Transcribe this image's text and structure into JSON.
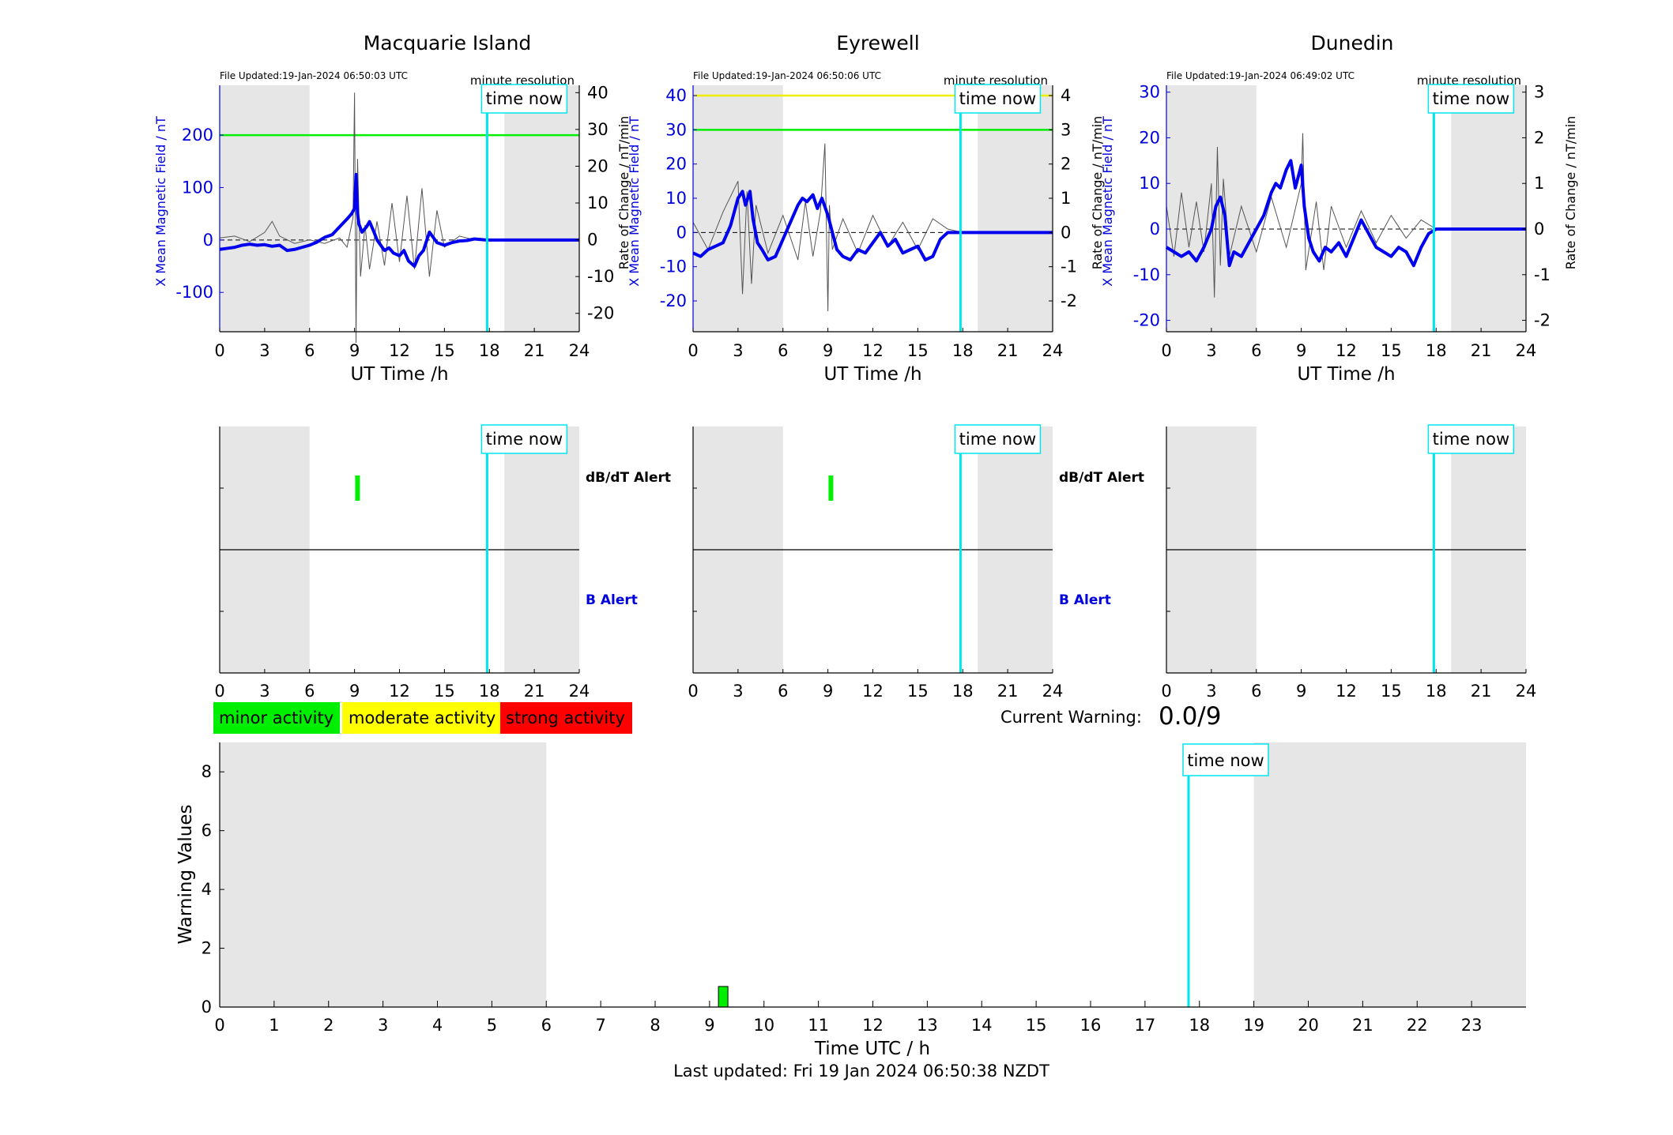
{
  "colors": {
    "shade": "#e6e6e6",
    "main_series": "#0000ee",
    "rate_series": "#555555",
    "time_now": "#00e5ee",
    "green_threshold": "#00ee00",
    "yellow_threshold": "#eeee00",
    "axis_blue": "#0000dd",
    "minor": "#00ee00",
    "moderate": "#ffff00",
    "strong": "#ff0000"
  },
  "labels": {
    "ut_time": "UT Time /h",
    "left_axis": "X Mean Magnetic Field / nT",
    "right_axis": "Rate of Change / nT/min",
    "minute_resolution": "minute resolution",
    "time_now": "time now",
    "dbdt_alert": "dB/dT Alert",
    "b_alert": "B Alert"
  },
  "legend": {
    "minor": "minor activity",
    "moderate": "moderate activity",
    "strong": "strong activity"
  },
  "current_warning": {
    "label": "Current Warning:",
    "value": "0.0/9"
  },
  "footer": {
    "last_updated": "Last updated: Fri 19 Jan 2024 06:50:38 NZDT"
  },
  "chart_data": [
    {
      "type": "line",
      "station": "Macquarie Island",
      "title": "Macquarie Island",
      "file_updated": "File Updated:19-Jan-2024 06:50:03 UTC",
      "xlabel": "UT Time /h",
      "ylabel": "X Mean Magnetic Field / nT",
      "y2label": "Rate of Change / nT/min",
      "xlim": [
        0,
        24
      ],
      "xticks": [
        0,
        3,
        6,
        9,
        12,
        15,
        18,
        21,
        24
      ],
      "ylim": [
        -175,
        295
      ],
      "yticks": [
        -100,
        0,
        100,
        200
      ],
      "y2lim": [
        -25,
        42
      ],
      "y2ticks": [
        -20,
        -10,
        0,
        10,
        20,
        30,
        40
      ],
      "shaded_hours": [
        [
          0,
          6
        ],
        [
          19,
          24
        ]
      ],
      "time_now": 17.85,
      "thresholds": [
        {
          "color": "green",
          "value": 200
        }
      ],
      "series": [
        {
          "name": "X Mean Magnetic Field",
          "x": [
            0,
            0.5,
            1,
            1.5,
            2,
            2.5,
            3,
            3.5,
            4,
            4.5,
            5,
            5.5,
            6,
            6.5,
            7,
            7.5,
            8,
            8.5,
            8.8,
            9,
            9.1,
            9.2,
            9.3,
            9.5,
            9.8,
            10,
            10.3,
            10.5,
            11,
            11.3,
            11.6,
            12,
            12.3,
            12.6,
            13,
            13.3,
            13.6,
            14,
            14.5,
            15,
            15.5,
            16,
            16.5,
            17,
            17.8,
            18,
            24
          ],
          "y": [
            -18,
            -16,
            -14,
            -10,
            -8,
            -10,
            -9,
            -12,
            -10,
            -20,
            -18,
            -14,
            -10,
            -4,
            5,
            10,
            25,
            40,
            50,
            60,
            125,
            50,
            30,
            15,
            25,
            35,
            15,
            0,
            -20,
            -15,
            -25,
            -30,
            -20,
            -40,
            -50,
            -30,
            -20,
            15,
            -5,
            -10,
            -5,
            -2,
            -1,
            2,
            0,
            0,
            0
          ]
        },
        {
          "name": "Rate of Change",
          "x": [
            0,
            1,
            2,
            3,
            3.5,
            4,
            5,
            6,
            7,
            8,
            8.5,
            8.9,
            9.0,
            9.1,
            9.2,
            9.4,
            9.7,
            10,
            10.5,
            11,
            11.5,
            12,
            12.5,
            13,
            13.5,
            14,
            14.5,
            15,
            16,
            17,
            18
          ],
          "y": [
            0.5,
            1,
            -0.5,
            2,
            5,
            1,
            -1,
            0,
            -1,
            0.5,
            -2,
            6,
            40,
            -28,
            22,
            -10,
            4,
            -8,
            5,
            -7,
            10,
            -6,
            12,
            -8,
            14,
            -10,
            8,
            -2,
            1,
            0,
            0
          ]
        }
      ]
    },
    {
      "type": "line",
      "station": "Eyrewell",
      "title": "Eyrewell",
      "file_updated": "File Updated:19-Jan-2024 06:50:06 UTC",
      "xlabel": "UT Time /h",
      "ylabel": "X Mean Magnetic Field / nT",
      "y2label": "Rate of Change / nT/min",
      "xlim": [
        0,
        24
      ],
      "xticks": [
        0,
        3,
        6,
        9,
        12,
        15,
        18,
        21,
        24
      ],
      "ylim": [
        -29,
        43
      ],
      "yticks": [
        -20,
        -10,
        0,
        10,
        20,
        30,
        40
      ],
      "y2lim": [
        -2.9,
        4.3
      ],
      "y2ticks": [
        -2,
        -1,
        0,
        1,
        2,
        3,
        4
      ],
      "shaded_hours": [
        [
          0,
          6
        ],
        [
          19,
          24
        ]
      ],
      "time_now": 17.85,
      "thresholds": [
        {
          "color": "yellow",
          "value": 40
        },
        {
          "color": "green",
          "value": 30
        }
      ],
      "series": [
        {
          "name": "X Mean Magnetic Field",
          "x": [
            0,
            0.5,
            1,
            1.5,
            2,
            2.5,
            3,
            3.3,
            3.5,
            3.8,
            4,
            4.3,
            4.6,
            5,
            5.5,
            6,
            6.5,
            7,
            7.3,
            7.6,
            8,
            8.3,
            8.6,
            9,
            9.3,
            9.6,
            10,
            10.5,
            11,
            11.5,
            12,
            12.5,
            13,
            13.5,
            14,
            14.5,
            15,
            15.5,
            16,
            16.5,
            17,
            17.5,
            18,
            24
          ],
          "y": [
            -6,
            -7,
            -5,
            -4,
            -3,
            2,
            10,
            12,
            8,
            12,
            4,
            -3,
            -5,
            -8,
            -7,
            -2,
            3,
            8,
            10,
            9,
            11,
            7,
            10,
            5,
            0,
            -5,
            -7,
            -8,
            -5,
            -6,
            -3,
            0,
            -4,
            -2,
            -6,
            -5,
            -4,
            -8,
            -7,
            -2,
            0,
            0,
            0,
            0
          ]
        },
        {
          "name": "Rate of Change",
          "x": [
            0,
            1,
            2,
            3,
            3.3,
            3.6,
            3.9,
            4.2,
            5,
            6,
            7,
            7.5,
            8,
            8.5,
            8.8,
            9.0,
            9.1,
            9.3,
            10,
            11,
            12,
            13,
            14,
            15,
            16,
            17,
            18
          ],
          "y": [
            0.3,
            -0.5,
            0.6,
            1.5,
            -1.8,
            1.2,
            -1.5,
            0.8,
            -0.6,
            0.5,
            -0.8,
            0.9,
            -0.7,
            0.6,
            2.6,
            -2.3,
            0.8,
            -0.5,
            0.4,
            -0.6,
            0.5,
            -0.4,
            0.3,
            -0.5,
            0.4,
            0.1,
            0
          ]
        }
      ]
    },
    {
      "type": "line",
      "station": "Dunedin",
      "title": "Dunedin",
      "file_updated": "File Updated:19-Jan-2024 06:49:02 UTC",
      "xlabel": "UT Time /h",
      "ylabel": "X Mean Magnetic Field / nT",
      "y2label": "Rate of Change / nT/min",
      "xlim": [
        0,
        24
      ],
      "xticks": [
        0,
        3,
        6,
        9,
        12,
        15,
        18,
        21,
        24
      ],
      "ylim": [
        -22.5,
        31.5
      ],
      "yticks": [
        -20,
        -10,
        0,
        10,
        20,
        30
      ],
      "y2lim": [
        -2.25,
        3.15
      ],
      "y2ticks": [
        -2,
        -1,
        0,
        1,
        2,
        3
      ],
      "shaded_hours": [
        [
          0,
          6
        ],
        [
          19,
          24
        ]
      ],
      "time_now": 17.85,
      "thresholds": [],
      "series": [
        {
          "name": "X Mean Magnetic Field",
          "x": [
            0,
            0.5,
            1,
            1.5,
            2,
            2.5,
            3,
            3.3,
            3.6,
            3.9,
            4.2,
            4.5,
            5,
            5.5,
            6,
            6.5,
            7,
            7.3,
            7.6,
            8,
            8.3,
            8.6,
            9,
            9.2,
            9.5,
            9.8,
            10.2,
            10.6,
            11,
            11.5,
            12,
            12.5,
            13,
            13.5,
            14,
            14.5,
            15,
            15.5,
            16,
            16.5,
            17,
            17.5,
            18,
            24
          ],
          "y": [
            -4,
            -5,
            -6,
            -5,
            -7,
            -4,
            0,
            5,
            7,
            3,
            -8,
            -5,
            -6,
            -3,
            0,
            3,
            8,
            10,
            9,
            13,
            15,
            9,
            14,
            5,
            -2,
            -5,
            -7,
            -4,
            -5,
            -3,
            -6,
            -2,
            2,
            -1,
            -4,
            -5,
            -6,
            -4,
            -5,
            -8,
            -4,
            -1,
            0,
            0
          ]
        },
        {
          "name": "Rate of Change",
          "x": [
            0,
            0.5,
            1,
            1.5,
            2,
            2.5,
            3,
            3.2,
            3.4,
            3.6,
            3.8,
            4.2,
            5,
            6,
            7,
            8,
            9,
            9.1,
            9.3,
            10,
            10.5,
            11,
            12,
            13,
            14,
            15,
            16,
            17,
            18
          ],
          "y": [
            0.5,
            -0.6,
            0.8,
            -0.4,
            0.6,
            -0.5,
            1.0,
            -1.5,
            1.8,
            -0.8,
            1.1,
            -0.6,
            0.5,
            -0.5,
            0.7,
            -0.4,
            1.0,
            2.1,
            -0.9,
            0.6,
            -0.9,
            0.5,
            -0.4,
            0.4,
            -0.3,
            0.3,
            -0.2,
            0.2,
            0
          ]
        }
      ]
    },
    {
      "type": "timeline",
      "station": "Macquarie Island",
      "xlim": [
        0,
        24
      ],
      "xticks": [
        0,
        3,
        6,
        9,
        12,
        15,
        18,
        21,
        24
      ],
      "shaded_hours": [
        [
          0,
          6
        ],
        [
          19,
          24
        ]
      ],
      "time_now": 17.85,
      "dbdt_alerts": [
        {
          "hour": 9.2,
          "color": "green"
        }
      ],
      "b_alerts": []
    },
    {
      "type": "timeline",
      "station": "Eyrewell",
      "xlim": [
        0,
        24
      ],
      "xticks": [
        0,
        3,
        6,
        9,
        12,
        15,
        18,
        21,
        24
      ],
      "shaded_hours": [
        [
          0,
          6
        ],
        [
          19,
          24
        ]
      ],
      "time_now": 17.85,
      "dbdt_alerts": [
        {
          "hour": 9.2,
          "color": "green"
        }
      ],
      "b_alerts": []
    },
    {
      "type": "timeline",
      "station": "Dunedin",
      "xlim": [
        0,
        24
      ],
      "xticks": [
        0,
        3,
        6,
        9,
        12,
        15,
        18,
        21,
        24
      ],
      "shaded_hours": [
        [
          0,
          6
        ],
        [
          19,
          24
        ]
      ],
      "time_now": 17.85,
      "dbdt_alerts": [],
      "b_alerts": []
    },
    {
      "type": "bar",
      "title": "",
      "xlabel": "Time UTC / h",
      "ylabel": "Warning Values",
      "xlim": [
        0,
        24
      ],
      "xticks": [
        0,
        1,
        2,
        3,
        4,
        5,
        6,
        7,
        8,
        9,
        10,
        11,
        12,
        13,
        14,
        15,
        16,
        17,
        18,
        19,
        20,
        21,
        22,
        23
      ],
      "ylim": [
        0,
        9
      ],
      "yticks": [
        0,
        2,
        4,
        6,
        8
      ],
      "shaded_hours": [
        [
          0,
          6
        ],
        [
          19,
          24
        ]
      ],
      "time_now": 17.8,
      "bars": [
        {
          "hour": 9.25,
          "value": 0.7,
          "color": "green"
        }
      ]
    }
  ]
}
